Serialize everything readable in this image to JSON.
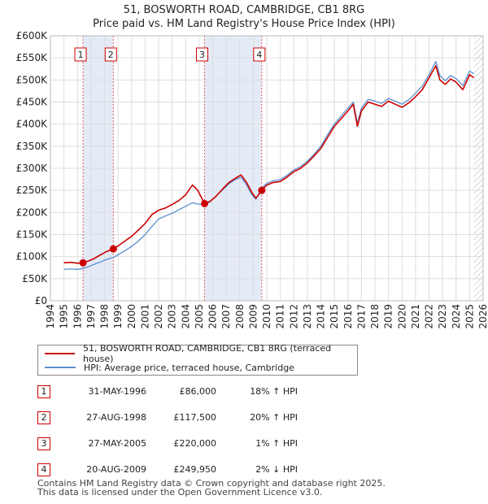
{
  "chart_data": {
    "type": "line",
    "title": "51, BOSWORTH ROAD, CAMBRIDGE, CB1 8RG",
    "subtitle": "Price paid vs. HM Land Registry's House Price Index (HPI)",
    "xlabel": "",
    "ylabel": "",
    "xlim": [
      1994,
      2026
    ],
    "ylim": [
      0,
      600000
    ],
    "grid": true,
    "x_ticks": [
      "1994",
      "1995",
      "1996",
      "1997",
      "1998",
      "1999",
      "2000",
      "2001",
      "2002",
      "2003",
      "2004",
      "2005",
      "2006",
      "2007",
      "2008",
      "2009",
      "2010",
      "2011",
      "2012",
      "2013",
      "2014",
      "2015",
      "2016",
      "2017",
      "2018",
      "2019",
      "2020",
      "2021",
      "2022",
      "2023",
      "2024",
      "2025",
      "2026"
    ],
    "y_ticks": [
      {
        "value": 0,
        "label": "£0"
      },
      {
        "value": 50000,
        "label": "£50K"
      },
      {
        "value": 100000,
        "label": "£100K"
      },
      {
        "value": 150000,
        "label": "£150K"
      },
      {
        "value": 200000,
        "label": "£200K"
      },
      {
        "value": 250000,
        "label": "£250K"
      },
      {
        "value": 300000,
        "label": "£300K"
      },
      {
        "value": 350000,
        "label": "£350K"
      },
      {
        "value": 400000,
        "label": "£400K"
      },
      {
        "value": 450000,
        "label": "£450K"
      },
      {
        "value": 500000,
        "label": "£500K"
      },
      {
        "value": 550000,
        "label": "£550K"
      },
      {
        "value": 600000,
        "label": "£600K"
      }
    ],
    "series": [
      {
        "name": "51, BOSWORTH ROAD, CAMBRIDGE, CB1 8RG (terraced house)",
        "color": "#cc0000",
        "points": [
          [
            1995.0,
            86000
          ],
          [
            1995.5,
            87000
          ],
          [
            1996.0,
            85000
          ],
          [
            1996.41,
            86000
          ],
          [
            1996.8,
            90000
          ],
          [
            1997.2,
            95000
          ],
          [
            1997.7,
            104000
          ],
          [
            1998.2,
            112000
          ],
          [
            1998.65,
            117500
          ],
          [
            1999.0,
            124000
          ],
          [
            1999.5,
            135000
          ],
          [
            2000.0,
            146000
          ],
          [
            2000.5,
            160000
          ],
          [
            2001.0,
            175000
          ],
          [
            2001.5,
            195000
          ],
          [
            2002.0,
            205000
          ],
          [
            2002.5,
            210000
          ],
          [
            2003.0,
            218000
          ],
          [
            2003.5,
            227000
          ],
          [
            2004.0,
            240000
          ],
          [
            2004.5,
            262000
          ],
          [
            2004.9,
            250000
          ],
          [
            2005.4,
            220000
          ],
          [
            2005.8,
            225000
          ],
          [
            2006.2,
            235000
          ],
          [
            2006.7,
            252000
          ],
          [
            2007.2,
            268000
          ],
          [
            2007.7,
            278000
          ],
          [
            2008.1,
            285000
          ],
          [
            2008.5,
            268000
          ],
          [
            2008.9,
            245000
          ],
          [
            2009.2,
            232000
          ],
          [
            2009.63,
            249950
          ],
          [
            2010.0,
            262000
          ],
          [
            2010.5,
            268000
          ],
          [
            2011.0,
            270000
          ],
          [
            2011.5,
            280000
          ],
          [
            2012.0,
            292000
          ],
          [
            2012.5,
            300000
          ],
          [
            2013.0,
            312000
          ],
          [
            2013.5,
            328000
          ],
          [
            2014.0,
            345000
          ],
          [
            2014.5,
            370000
          ],
          [
            2015.0,
            395000
          ],
          [
            2015.5,
            412000
          ],
          [
            2016.0,
            430000
          ],
          [
            2016.4,
            445000
          ],
          [
            2016.7,
            395000
          ],
          [
            2017.0,
            430000
          ],
          [
            2017.5,
            450000
          ],
          [
            2018.0,
            445000
          ],
          [
            2018.5,
            440000
          ],
          [
            2019.0,
            452000
          ],
          [
            2019.5,
            445000
          ],
          [
            2020.0,
            438000
          ],
          [
            2020.5,
            448000
          ],
          [
            2021.0,
            462000
          ],
          [
            2021.5,
            478000
          ],
          [
            2022.0,
            505000
          ],
          [
            2022.5,
            532000
          ],
          [
            2022.8,
            500000
          ],
          [
            2023.2,
            490000
          ],
          [
            2023.6,
            502000
          ],
          [
            2024.0,
            495000
          ],
          [
            2024.5,
            478000
          ],
          [
            2025.0,
            512000
          ],
          [
            2025.3,
            505000
          ]
        ]
      },
      {
        "name": "HPI: Average price, terraced house, Cambridge",
        "color": "#5a8fd0",
        "points": [
          [
            1995.0,
            71000
          ],
          [
            1995.5,
            72000
          ],
          [
            1996.0,
            71000
          ],
          [
            1996.41,
            73000
          ],
          [
            1996.8,
            77000
          ],
          [
            1997.2,
            82000
          ],
          [
            1997.7,
            88000
          ],
          [
            1998.2,
            94000
          ],
          [
            1998.65,
            98000
          ],
          [
            1999.0,
            104000
          ],
          [
            1999.5,
            113000
          ],
          [
            2000.0,
            123000
          ],
          [
            2000.5,
            135000
          ],
          [
            2001.0,
            150000
          ],
          [
            2001.5,
            168000
          ],
          [
            2002.0,
            185000
          ],
          [
            2002.5,
            192000
          ],
          [
            2003.0,
            198000
          ],
          [
            2003.5,
            206000
          ],
          [
            2004.0,
            214000
          ],
          [
            2004.5,
            222000
          ],
          [
            2004.9,
            219000
          ],
          [
            2005.4,
            218000
          ],
          [
            2005.8,
            224000
          ],
          [
            2006.2,
            236000
          ],
          [
            2006.7,
            250000
          ],
          [
            2007.2,
            265000
          ],
          [
            2007.7,
            275000
          ],
          [
            2008.1,
            280000
          ],
          [
            2008.5,
            262000
          ],
          [
            2008.9,
            240000
          ],
          [
            2009.2,
            230000
          ],
          [
            2009.63,
            255000
          ],
          [
            2010.0,
            266000
          ],
          [
            2010.5,
            272000
          ],
          [
            2011.0,
            274000
          ],
          [
            2011.5,
            284000
          ],
          [
            2012.0,
            296000
          ],
          [
            2012.5,
            304000
          ],
          [
            2013.0,
            316000
          ],
          [
            2013.5,
            332000
          ],
          [
            2014.0,
            350000
          ],
          [
            2014.5,
            376000
          ],
          [
            2015.0,
            400000
          ],
          [
            2015.5,
            418000
          ],
          [
            2016.0,
            436000
          ],
          [
            2016.4,
            450000
          ],
          [
            2016.7,
            402000
          ],
          [
            2017.0,
            436000
          ],
          [
            2017.5,
            456000
          ],
          [
            2018.0,
            452000
          ],
          [
            2018.5,
            447000
          ],
          [
            2019.0,
            458000
          ],
          [
            2019.5,
            452000
          ],
          [
            2020.0,
            445000
          ],
          [
            2020.5,
            455000
          ],
          [
            2021.0,
            470000
          ],
          [
            2021.5,
            486000
          ],
          [
            2022.0,
            512000
          ],
          [
            2022.5,
            542000
          ],
          [
            2022.8,
            510000
          ],
          [
            2023.2,
            498000
          ],
          [
            2023.6,
            510000
          ],
          [
            2024.0,
            503000
          ],
          [
            2024.5,
            487000
          ],
          [
            2025.0,
            520000
          ],
          [
            2025.3,
            514000
          ]
        ]
      }
    ],
    "sale_markers": [
      {
        "label": "1",
        "x": 1996.41,
        "price": 86000
      },
      {
        "label": "2",
        "x": 1998.65,
        "price": 117500
      },
      {
        "label": "3",
        "x": 2005.4,
        "price": 220000
      },
      {
        "label": "4",
        "x": 2009.63,
        "price": 249950
      }
    ],
    "shaded_ranges": [
      [
        1996.41,
        1998.65
      ],
      [
        2005.4,
        2009.63
      ]
    ],
    "hatch_from": 2025.3
  },
  "legend": {
    "property_label": "51, BOSWORTH ROAD, CAMBRIDGE, CB1 8RG (terraced house)",
    "hpi_label": "HPI: Average price, terraced house, Cambridge",
    "property_color": "#cc0000",
    "hpi_color": "#5a8fd0"
  },
  "sales": [
    {
      "num": "1",
      "date": "31-MAY-1996",
      "price": "£86,000",
      "hpi": "18% ↑ HPI"
    },
    {
      "num": "2",
      "date": "27-AUG-1998",
      "price": "£117,500",
      "hpi": "20% ↑ HPI"
    },
    {
      "num": "3",
      "date": "27-MAY-2005",
      "price": "£220,000",
      "hpi": "1% ↑ HPI"
    },
    {
      "num": "4",
      "date": "20-AUG-2009",
      "price": "£249,950",
      "hpi": "2% ↓ HPI"
    }
  ],
  "footer": {
    "line1": "Contains HM Land Registry data © Crown copyright and database right 2025.",
    "line2": "This data is licensed under the Open Government Licence v3.0."
  }
}
